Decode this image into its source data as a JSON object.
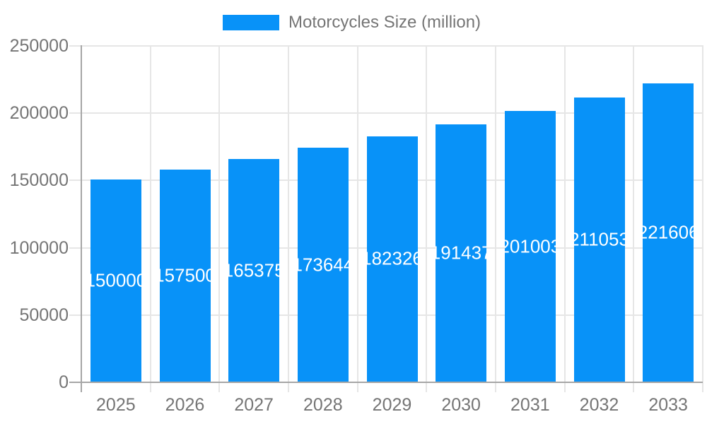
{
  "chart_data": {
    "type": "bar",
    "title": "",
    "legend_label": "Motorcycles Size (million)",
    "legend_position": "top",
    "categories": [
      "2025",
      "2026",
      "2027",
      "2028",
      "2029",
      "2030",
      "2031",
      "2032",
      "2033"
    ],
    "series": [
      {
        "name": "Motorcycles Size (million)",
        "values": [
          150000,
          157500,
          165375,
          173644,
          182326,
          191437,
          201003,
          211053,
          221606
        ]
      }
    ],
    "bar_value_labels": [
      "150000",
      "157500",
      "165375",
      "173644",
      "182326",
      "191437",
      "201003",
      "211053",
      "221606"
    ],
    "xlabel": "",
    "ylabel": "",
    "ylim": [
      0,
      250000
    ],
    "yticks": [
      0,
      50000,
      100000,
      150000,
      200000,
      250000
    ],
    "ytick_labels": [
      "0",
      "50000",
      "100000",
      "150000",
      "200000",
      "250000"
    ],
    "grid": true,
    "colors": {
      "bar": "#0892f8",
      "axis_line": "#a6a6a6",
      "gridline": "#e6e6e6",
      "tick_label": "#757575",
      "legend_text": "#757575",
      "bar_value_text": "#ffffff",
      "background": "#ffffff"
    }
  }
}
